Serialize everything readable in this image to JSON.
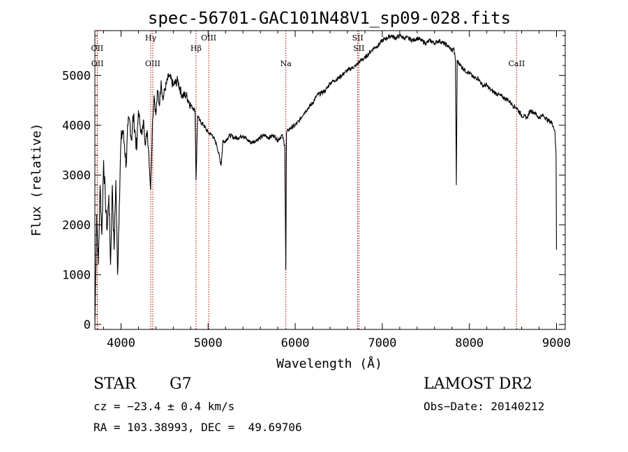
{
  "chart_data": {
    "type": "line",
    "title": "spec-56701-GAC101N48V1_sp09-028.fits",
    "xlabel": "Wavelength (Å)",
    "ylabel": "Flux (relative)",
    "xlim": [
      3700,
      9100
    ],
    "ylim": [
      -100,
      5900
    ],
    "xticks": [
      4000,
      5000,
      6000,
      7000,
      8000,
      9000
    ],
    "yticks": [
      0,
      1000,
      2000,
      3000,
      4000,
      5000
    ],
    "grid": false,
    "line_color": "#000000",
    "marker_color": "#aa0000",
    "series": [
      {
        "x": [
          3700,
          3720,
          3740,
          3760,
          3780,
          3800,
          3820,
          3840,
          3860,
          3880,
          3900,
          3920,
          3940,
          3960,
          3980,
          4000,
          4020,
          4040,
          4060,
          4080,
          4100,
          4120,
          4140,
          4160,
          4180,
          4200,
          4220,
          4240,
          4260,
          4280,
          4300,
          4320,
          4340,
          4360,
          4380,
          4400,
          4420,
          4440,
          4460,
          4480,
          4500,
          4550,
          4600,
          4650,
          4700,
          4750,
          4800,
          4850,
          4861,
          4880,
          4900,
          4950,
          5000,
          5050,
          5100,
          5150,
          5170,
          5190,
          5200,
          5250,
          5300,
          5350,
          5400,
          5450,
          5500,
          5550,
          5600,
          5650,
          5700,
          5750,
          5800,
          5850,
          5880,
          5892,
          5900,
          5920,
          5950,
          6000,
          6050,
          6100,
          6150,
          6200,
          6250,
          6300,
          6350,
          6400,
          6450,
          6500,
          6563,
          6600,
          6650,
          6700,
          6750,
          6800,
          6850,
          6900,
          6950,
          7000,
          7050,
          7100,
          7150,
          7200,
          7250,
          7300,
          7350,
          7400,
          7450,
          7500,
          7550,
          7600,
          7650,
          7700,
          7750,
          7800,
          7820,
          7840,
          7850,
          7860,
          7900,
          7950,
          8000,
          8050,
          8100,
          8150,
          8200,
          8250,
          8300,
          8350,
          8400,
          8450,
          8498,
          8542,
          8600,
          8662,
          8700,
          8750,
          8800,
          8850,
          8900,
          8950,
          8980,
          8995,
          9000
        ],
        "y": [
          0,
          2200,
          1200,
          2800,
          1800,
          3300,
          2500,
          1900,
          2600,
          1200,
          2800,
          1500,
          2900,
          1000,
          2400,
          3700,
          3900,
          3600,
          3200,
          4000,
          4100,
          3700,
          4200,
          3900,
          3500,
          4300,
          4000,
          3800,
          4100,
          3600,
          3900,
          3400,
          2700,
          4000,
          4600,
          4200,
          4700,
          4400,
          4900,
          4500,
          4700,
          5000,
          4800,
          4900,
          4600,
          4600,
          4400,
          4300,
          2900,
          4200,
          4100,
          4000,
          3850,
          3800,
          3600,
          3200,
          3700,
          3650,
          3700,
          3800,
          3750,
          3750,
          3800,
          3700,
          3650,
          3700,
          3750,
          3800,
          3750,
          3800,
          3700,
          3800,
          3600,
          1100,
          3850,
          3900,
          3950,
          4000,
          4100,
          4250,
          4350,
          4450,
          4600,
          4650,
          4700,
          4850,
          4900,
          4950,
          5050,
          5100,
          5150,
          5200,
          5300,
          5350,
          5450,
          5550,
          5600,
          5700,
          5750,
          5800,
          5750,
          5800,
          5750,
          5750,
          5700,
          5750,
          5700,
          5650,
          5700,
          5650,
          5700,
          5650,
          5600,
          5500,
          5550,
          5300,
          2800,
          5300,
          5200,
          5100,
          5050,
          4950,
          4950,
          4800,
          4800,
          4700,
          4650,
          4600,
          4550,
          4500,
          4400,
          4350,
          4200,
          4150,
          4300,
          4250,
          4150,
          4200,
          4100,
          4050,
          3900,
          3400,
          1500
        ]
      }
    ],
    "line_markers": [
      {
        "x": 3727,
        "label": "OII"
      },
      {
        "x": 3729,
        "label": "OII"
      },
      {
        "x": 4341,
        "label": "Hγ"
      },
      {
        "x": 4364,
        "label": "OIII"
      },
      {
        "x": 4861,
        "label": "Hβ"
      },
      {
        "x": 5007,
        "label": "OIII"
      },
      {
        "x": 5893,
        "label": "Na"
      },
      {
        "x": 6717,
        "label": "SII"
      },
      {
        "x": 6731,
        "label": "SII"
      },
      {
        "x": 8542,
        "label": "CaII"
      }
    ]
  },
  "info": {
    "object_type": "STAR",
    "subclass": "G7",
    "survey": "LAMOST DR2",
    "cz": "cz = −23.4 ± 0.4 km/s",
    "obs_date": "Obs−Date: 20140212",
    "coords": "RA = 103.38993, DEC =  49.69706"
  }
}
